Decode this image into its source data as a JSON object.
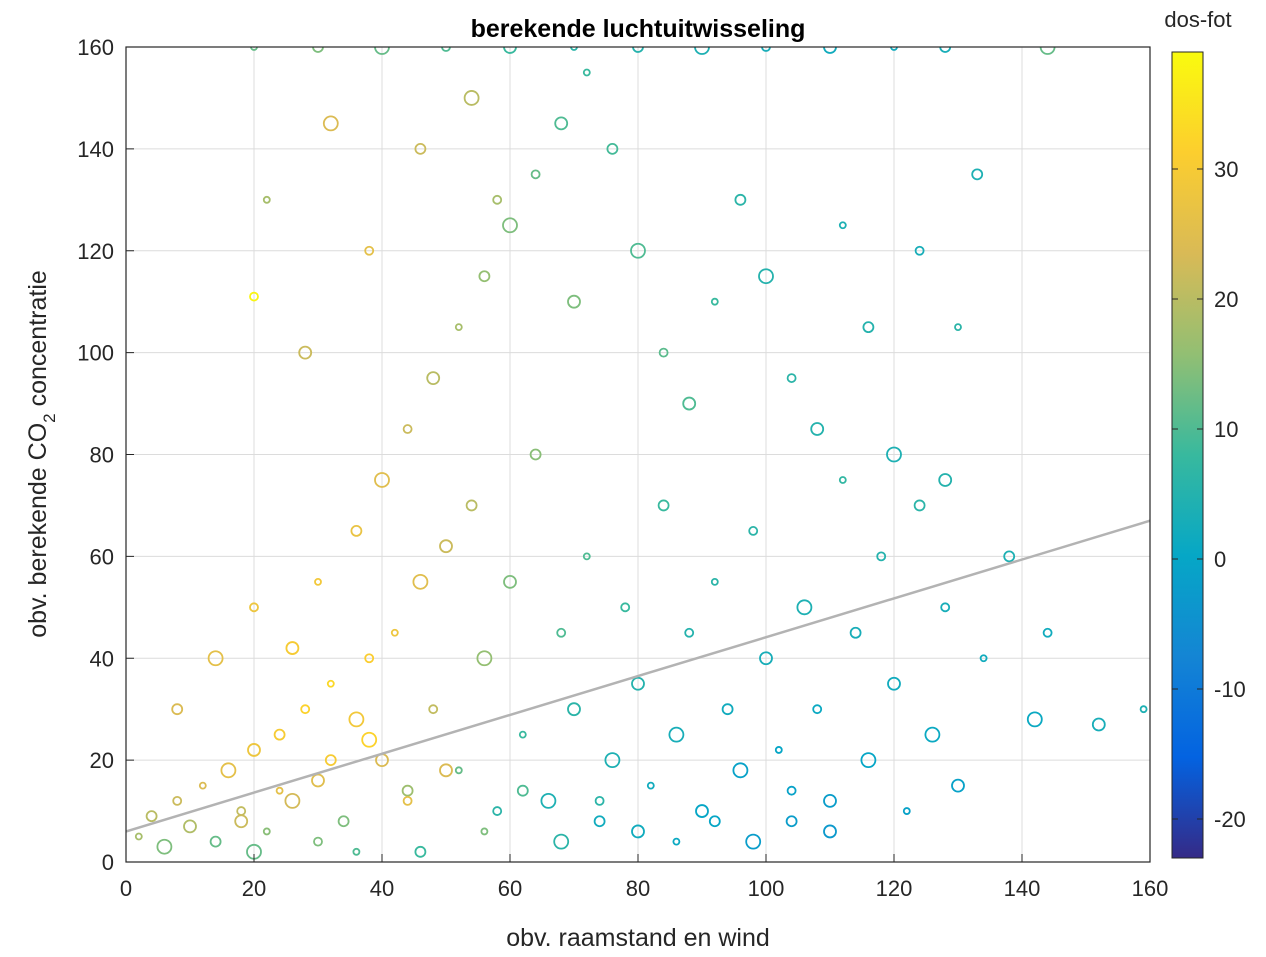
{
  "chart_data": {
    "type": "scatter",
    "title": "berekende luchtuitwisseling",
    "xlabel": "obv. raamstand en wind",
    "ylabel_parts": [
      "obv. berekende CO",
      "2",
      " concentratie"
    ],
    "xlim": [
      0,
      160
    ],
    "ylim": [
      0,
      160
    ],
    "x_ticks": [
      "0",
      "20",
      "40",
      "60",
      "80",
      "100",
      "120",
      "140",
      "160"
    ],
    "y_ticks": [
      "0",
      "20",
      "40",
      "60",
      "80",
      "100",
      "120",
      "140",
      "160"
    ],
    "grid": true,
    "colorbar": {
      "label": "dos-fot",
      "colormap": "parula",
      "range": [
        -23,
        39
      ],
      "ticks": [
        "-20",
        "-10",
        "0",
        "10",
        "20",
        "30"
      ],
      "tick_values": [
        -20,
        -10,
        0,
        10,
        20,
        30
      ]
    },
    "fit_line": {
      "x": [
        0,
        160
      ],
      "y": [
        6,
        67
      ],
      "color": "#b3b3b3"
    },
    "series": [
      {
        "color_value": "dos-fot",
        "points": [
          [
            2,
            5,
            18
          ],
          [
            4,
            9,
            20
          ],
          [
            6,
            3,
            14
          ],
          [
            8,
            12,
            22
          ],
          [
            10,
            7,
            19
          ],
          [
            12,
            15,
            24
          ],
          [
            14,
            4,
            12
          ],
          [
            16,
            18,
            26
          ],
          [
            18,
            10,
            21
          ],
          [
            20,
            22,
            28
          ],
          [
            22,
            6,
            15
          ],
          [
            24,
            25,
            30
          ],
          [
            26,
            12,
            23
          ],
          [
            28,
            30,
            32
          ],
          [
            30,
            16,
            25
          ],
          [
            32,
            35,
            33
          ],
          [
            34,
            8,
            14
          ],
          [
            36,
            28,
            29
          ],
          [
            38,
            40,
            31
          ],
          [
            40,
            20,
            24
          ],
          [
            42,
            45,
            28
          ],
          [
            44,
            14,
            17
          ],
          [
            46,
            55,
            25
          ],
          [
            48,
            30,
            21
          ],
          [
            50,
            62,
            22
          ],
          [
            52,
            18,
            12
          ],
          [
            54,
            70,
            20
          ],
          [
            56,
            40,
            16
          ],
          [
            58,
            10,
            6
          ],
          [
            60,
            55,
            14
          ],
          [
            62,
            25,
            8
          ],
          [
            64,
            80,
            15
          ],
          [
            66,
            12,
            4
          ],
          [
            68,
            45,
            10
          ],
          [
            70,
            30,
            6
          ],
          [
            72,
            60,
            10
          ],
          [
            74,
            8,
            2
          ],
          [
            76,
            20,
            4
          ],
          [
            78,
            50,
            8
          ],
          [
            80,
            35,
            5
          ],
          [
            82,
            15,
            2
          ],
          [
            84,
            70,
            8
          ],
          [
            86,
            25,
            3
          ],
          [
            88,
            45,
            5
          ],
          [
            90,
            10,
            0
          ],
          [
            92,
            55,
            6
          ],
          [
            94,
            30,
            2
          ],
          [
            96,
            18,
            -1
          ],
          [
            98,
            65,
            6
          ],
          [
            100,
            40,
            3
          ],
          [
            102,
            22,
            0
          ],
          [
            104,
            8,
            -2
          ],
          [
            106,
            50,
            4
          ],
          [
            108,
            30,
            1
          ],
          [
            110,
            12,
            -2
          ],
          [
            112,
            75,
            7
          ],
          [
            114,
            45,
            3
          ],
          [
            116,
            20,
            0
          ],
          [
            118,
            60,
            5
          ],
          [
            120,
            35,
            2
          ],
          [
            122,
            10,
            -1
          ],
          [
            124,
            70,
            6
          ],
          [
            126,
            25,
            1
          ],
          [
            128,
            50,
            3
          ],
          [
            130,
            15,
            -1
          ],
          [
            134,
            40,
            2
          ],
          [
            138,
            60,
            4
          ],
          [
            142,
            28,
            1
          ],
          [
            144,
            45,
            2
          ],
          [
            152,
            27,
            3
          ],
          [
            159,
            30,
            4
          ],
          [
            8,
            30,
            24
          ],
          [
            14,
            40,
            26
          ],
          [
            20,
            50,
            28
          ],
          [
            26,
            42,
            30
          ],
          [
            30,
            55,
            29
          ],
          [
            36,
            65,
            27
          ],
          [
            40,
            75,
            25
          ],
          [
            44,
            85,
            22
          ],
          [
            48,
            95,
            20
          ],
          [
            52,
            105,
            18
          ],
          [
            56,
            115,
            16
          ],
          [
            60,
            125,
            14
          ],
          [
            64,
            135,
            12
          ],
          [
            68,
            145,
            10
          ],
          [
            72,
            155,
            8
          ],
          [
            76,
            140,
            9
          ],
          [
            80,
            120,
            10
          ],
          [
            84,
            100,
            11
          ],
          [
            88,
            90,
            10
          ],
          [
            92,
            110,
            8
          ],
          [
            96,
            130,
            6
          ],
          [
            100,
            115,
            5
          ],
          [
            104,
            95,
            6
          ],
          [
            108,
            85,
            5
          ],
          [
            112,
            125,
            4
          ],
          [
            116,
            105,
            5
          ],
          [
            120,
            80,
            4
          ],
          [
            124,
            120,
            3
          ],
          [
            128,
            75,
            5
          ],
          [
            130,
            105,
            6
          ],
          [
            133,
            135,
            4
          ],
          [
            32,
            145,
            24
          ],
          [
            38,
            120,
            26
          ],
          [
            28,
            100,
            22
          ],
          [
            22,
            130,
            18
          ],
          [
            46,
            140,
            22
          ],
          [
            54,
            150,
            20
          ],
          [
            58,
            130,
            18
          ],
          [
            70,
            110,
            14
          ],
          [
            20,
            160,
            12
          ],
          [
            30,
            160,
            14
          ],
          [
            40,
            160,
            12
          ],
          [
            50,
            160,
            10
          ],
          [
            60,
            160,
            8
          ],
          [
            70,
            160,
            6
          ],
          [
            80,
            160,
            5
          ],
          [
            90,
            160,
            4
          ],
          [
            100,
            160,
            3
          ],
          [
            110,
            160,
            2
          ],
          [
            120,
            160,
            2
          ],
          [
            128,
            160,
            3
          ],
          [
            144,
            160,
            12
          ],
          [
            20,
            111,
            38
          ],
          [
            18,
            8,
            22
          ],
          [
            24,
            14,
            26
          ],
          [
            32,
            20,
            30
          ],
          [
            38,
            24,
            32
          ],
          [
            44,
            12,
            26
          ],
          [
            50,
            18,
            24
          ],
          [
            56,
            6,
            14
          ],
          [
            62,
            14,
            10
          ],
          [
            68,
            4,
            6
          ],
          [
            74,
            12,
            6
          ],
          [
            80,
            6,
            2
          ],
          [
            86,
            4,
            1
          ],
          [
            92,
            8,
            0
          ],
          [
            98,
            4,
            -2
          ],
          [
            104,
            14,
            -1
          ],
          [
            110,
            6,
            -3
          ],
          [
            36,
            2,
            10
          ],
          [
            46,
            2,
            8
          ],
          [
            20,
            2,
            12
          ],
          [
            30,
            4,
            14
          ]
        ]
      }
    ]
  }
}
